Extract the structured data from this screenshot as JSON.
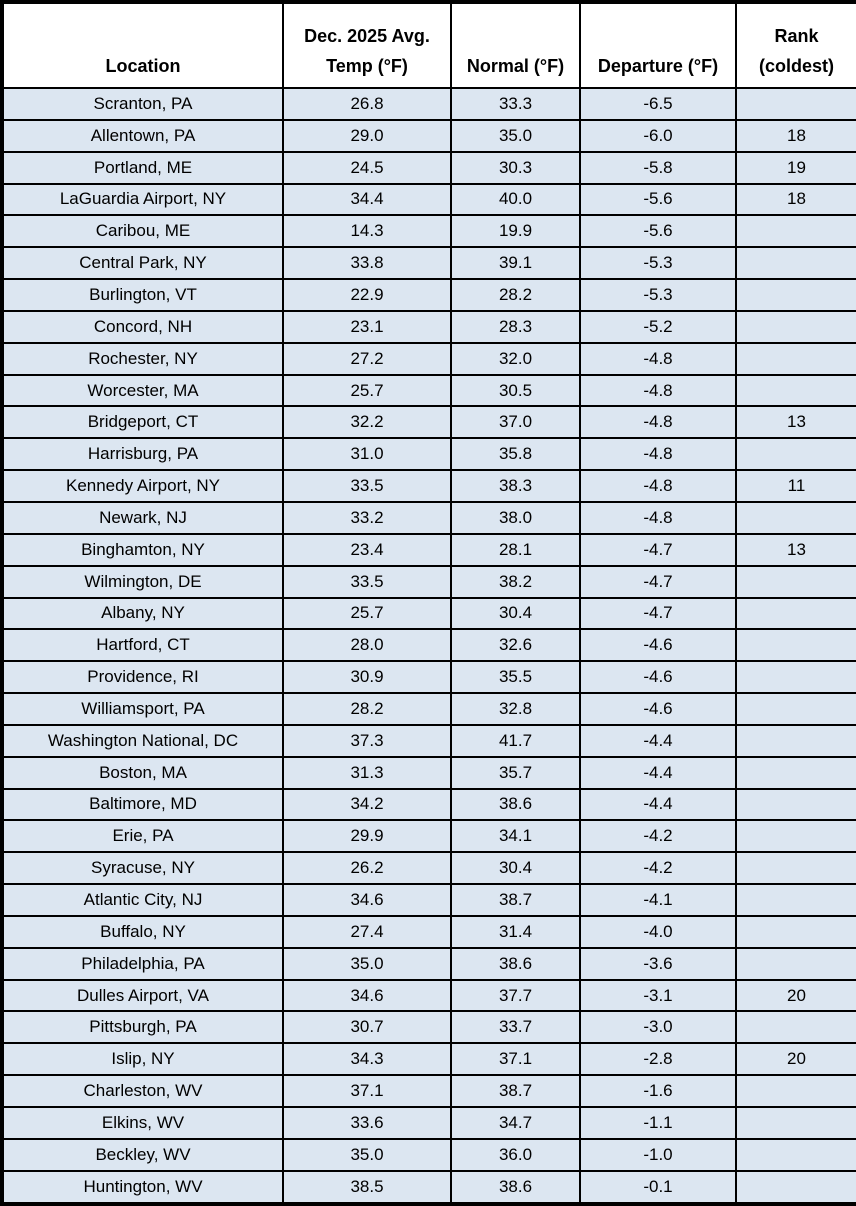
{
  "colors": {
    "row_bg": "#dce6f1",
    "header_bg": "#ffffff",
    "border": "#000000",
    "text": "#000000"
  },
  "chart_data": {
    "type": "table",
    "columns": [
      "Location",
      "Dec. 2025 Avg.\nTemp (°F)",
      "Normal (°F)",
      "Departure (°F)",
      "Rank\n(coldest)"
    ],
    "rows": [
      [
        "Scranton, PA",
        "26.8",
        "33.3",
        "-6.5",
        ""
      ],
      [
        "Allentown, PA",
        "29.0",
        "35.0",
        "-6.0",
        "18"
      ],
      [
        "Portland, ME",
        "24.5",
        "30.3",
        "-5.8",
        "19"
      ],
      [
        "LaGuardia Airport, NY",
        "34.4",
        "40.0",
        "-5.6",
        "18"
      ],
      [
        "Caribou, ME",
        "14.3",
        "19.9",
        "-5.6",
        ""
      ],
      [
        "Central Park, NY",
        "33.8",
        "39.1",
        "-5.3",
        ""
      ],
      [
        "Burlington, VT",
        "22.9",
        "28.2",
        "-5.3",
        ""
      ],
      [
        "Concord, NH",
        "23.1",
        "28.3",
        "-5.2",
        ""
      ],
      [
        "Rochester, NY",
        "27.2",
        "32.0",
        "-4.8",
        ""
      ],
      [
        "Worcester, MA",
        "25.7",
        "30.5",
        "-4.8",
        ""
      ],
      [
        "Bridgeport, CT",
        "32.2",
        "37.0",
        "-4.8",
        "13"
      ],
      [
        "Harrisburg, PA",
        "31.0",
        "35.8",
        "-4.8",
        ""
      ],
      [
        "Kennedy Airport, NY",
        "33.5",
        "38.3",
        "-4.8",
        "11"
      ],
      [
        "Newark, NJ",
        "33.2",
        "38.0",
        "-4.8",
        ""
      ],
      [
        "Binghamton, NY",
        "23.4",
        "28.1",
        "-4.7",
        "13"
      ],
      [
        "Wilmington, DE",
        "33.5",
        "38.2",
        "-4.7",
        ""
      ],
      [
        "Albany, NY",
        "25.7",
        "30.4",
        "-4.7",
        ""
      ],
      [
        "Hartford, CT",
        "28.0",
        "32.6",
        "-4.6",
        ""
      ],
      [
        "Providence, RI",
        "30.9",
        "35.5",
        "-4.6",
        ""
      ],
      [
        "Williamsport, PA",
        "28.2",
        "32.8",
        "-4.6",
        ""
      ],
      [
        "Washington National, DC",
        "37.3",
        "41.7",
        "-4.4",
        ""
      ],
      [
        "Boston, MA",
        "31.3",
        "35.7",
        "-4.4",
        ""
      ],
      [
        "Baltimore, MD",
        "34.2",
        "38.6",
        "-4.4",
        ""
      ],
      [
        "Erie, PA",
        "29.9",
        "34.1",
        "-4.2",
        ""
      ],
      [
        "Syracuse, NY",
        "26.2",
        "30.4",
        "-4.2",
        ""
      ],
      [
        "Atlantic City, NJ",
        "34.6",
        "38.7",
        "-4.1",
        ""
      ],
      [
        "Buffalo, NY",
        "27.4",
        "31.4",
        "-4.0",
        ""
      ],
      [
        "Philadelphia, PA",
        "35.0",
        "38.6",
        "-3.6",
        ""
      ],
      [
        "Dulles Airport, VA",
        "34.6",
        "37.7",
        "-3.1",
        "20"
      ],
      [
        "Pittsburgh, PA",
        "30.7",
        "33.7",
        "-3.0",
        ""
      ],
      [
        "Islip, NY",
        "34.3",
        "37.1",
        "-2.8",
        "20"
      ],
      [
        "Charleston, WV",
        "37.1",
        "38.7",
        "-1.6",
        ""
      ],
      [
        "Elkins, WV",
        "33.6",
        "34.7",
        "-1.1",
        ""
      ],
      [
        "Beckley, WV",
        "35.0",
        "36.0",
        "-1.0",
        ""
      ],
      [
        "Huntington, WV",
        "38.5",
        "38.6",
        "-0.1",
        ""
      ]
    ]
  }
}
